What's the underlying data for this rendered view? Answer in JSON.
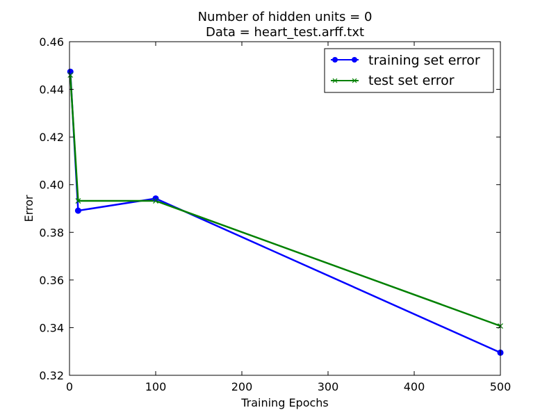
{
  "chart_data": {
    "type": "line",
    "title": "Number of hidden units = 0",
    "subtitle": "Data = heart_test.arff.txt",
    "xlabel": "Training Epochs",
    "ylabel": "Error",
    "xlim": [
      0,
      500
    ],
    "ylim": [
      0.32,
      0.46
    ],
    "xticks": [
      0,
      100,
      200,
      300,
      400,
      500
    ],
    "xtick_labels": [
      "0",
      "100",
      "200",
      "300",
      "400",
      "500"
    ],
    "yticks": [
      0.32,
      0.34,
      0.36,
      0.38,
      0.4,
      0.42,
      0.44,
      0.46
    ],
    "ytick_labels": [
      "0.32",
      "0.34",
      "0.36",
      "0.38",
      "0.40",
      "0.42",
      "0.44",
      "0.46"
    ],
    "grid": false,
    "legend_position": "top-right",
    "series": [
      {
        "name": "training set error",
        "color": "#0000ff",
        "marker": "circle",
        "x": [
          1,
          10,
          100,
          500
        ],
        "y": [
          0.4474,
          0.3891,
          0.3942,
          0.3295
        ]
      },
      {
        "name": "test set error",
        "color": "#008000",
        "marker": "x",
        "x": [
          1,
          10,
          100,
          500
        ],
        "y": [
          0.446,
          0.3932,
          0.3932,
          0.3407
        ]
      }
    ]
  }
}
